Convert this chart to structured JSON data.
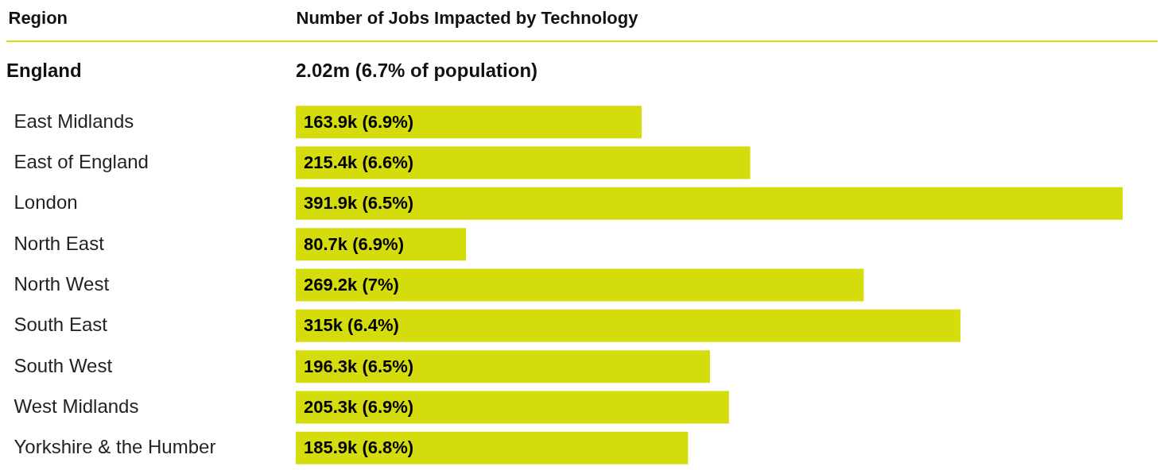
{
  "chart_data": {
    "type": "bar",
    "orientation": "horizontal",
    "ylabel": "Region",
    "xlabel": "Number of Jobs Impacted by Technology",
    "annotations": [
      "England",
      "2.02m (6.7% of population)"
    ],
    "categories": [
      "East Midlands",
      "East of England",
      "London",
      "North East",
      "North West",
      "South East",
      "South West",
      "West Midlands",
      "Yorkshire & the Humber"
    ],
    "values": [
      163900,
      215400,
      391900,
      80700,
      269200,
      315000,
      196300,
      205300,
      185900
    ],
    "value_labels": [
      "163.9k (6.9%)",
      "215.4k (6.6%)",
      "391.9k (6.5%)",
      "80.7k (6.9%)",
      "269.2k (7%)",
      "315k (6.4%)",
      "196.3k (6.5%)",
      "205.3k (6.9%)",
      "185.9k (6.8%)"
    ],
    "color": "#d4dc0c"
  }
}
